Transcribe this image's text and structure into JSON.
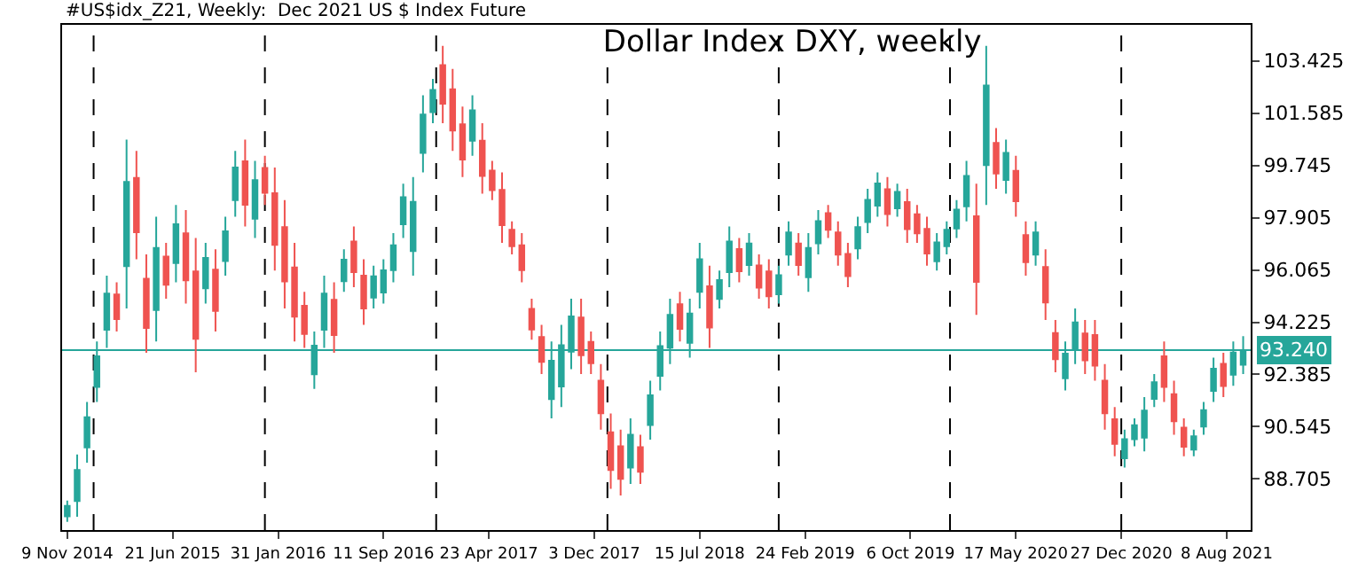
{
  "chart_data": {
    "type": "candlestick",
    "title": "Dollar Index DXY, weekly",
    "subtitle": "#US$idx_Z21, Weekly:  Dec 2021 US $ Index Future",
    "x": [
      "2014-11-09",
      "2014-11-30",
      "2014-12-21",
      "2015-01-11",
      "2015-02-01",
      "2015-02-22",
      "2015-03-15",
      "2015-04-05",
      "2015-04-26",
      "2015-05-17",
      "2015-06-07",
      "2015-06-28",
      "2015-07-19",
      "2015-08-09",
      "2015-08-30",
      "2015-09-20",
      "2015-10-11",
      "2015-11-01",
      "2015-11-22",
      "2015-12-13",
      "2016-01-03",
      "2016-01-24",
      "2016-02-14",
      "2016-03-06",
      "2016-03-27",
      "2016-04-17",
      "2016-05-08",
      "2016-05-29",
      "2016-06-19",
      "2016-07-10",
      "2016-07-31",
      "2016-08-21",
      "2016-09-11",
      "2016-10-02",
      "2016-10-23",
      "2016-11-13",
      "2016-12-04",
      "2016-12-25",
      "2017-01-15",
      "2017-02-05",
      "2017-02-26",
      "2017-03-19",
      "2017-04-09",
      "2017-04-30",
      "2017-05-21",
      "2017-06-11",
      "2017-07-02",
      "2017-07-23",
      "2017-08-13",
      "2017-09-03",
      "2017-09-24",
      "2017-10-15",
      "2017-11-05",
      "2017-11-26",
      "2017-12-17",
      "2018-01-07",
      "2018-01-28",
      "2018-02-18",
      "2018-03-11",
      "2018-04-01",
      "2018-04-22",
      "2018-05-13",
      "2018-06-03",
      "2018-06-24",
      "2018-07-15",
      "2018-08-05",
      "2018-08-26",
      "2018-09-16",
      "2018-10-07",
      "2018-10-28",
      "2018-11-18",
      "2018-12-09",
      "2018-12-30",
      "2019-01-20",
      "2019-02-10",
      "2019-03-03",
      "2019-03-24",
      "2019-04-14",
      "2019-05-05",
      "2019-05-26",
      "2019-06-16",
      "2019-07-07",
      "2019-07-28",
      "2019-08-18",
      "2019-09-08",
      "2019-09-29",
      "2019-10-20",
      "2019-11-10",
      "2019-12-01",
      "2019-12-22",
      "2020-01-12",
      "2020-02-02",
      "2020-02-23",
      "2020-03-15",
      "2020-04-05",
      "2020-04-26",
      "2020-05-17",
      "2020-06-07",
      "2020-06-28",
      "2020-07-19",
      "2020-08-09",
      "2020-08-30",
      "2020-09-20",
      "2020-10-11",
      "2020-11-01",
      "2020-11-22",
      "2020-12-13",
      "2021-01-03",
      "2021-01-24",
      "2021-02-14",
      "2021-03-07",
      "2021-03-28",
      "2021-04-18",
      "2021-05-09",
      "2021-05-30",
      "2021-06-20",
      "2021-07-11",
      "2021-08-01",
      "2021-08-22",
      "2021-09-12"
    ],
    "ohlc": [
      [
        87.39,
        87.95,
        87.2,
        87.76
      ],
      [
        87.93,
        89.57,
        87.38,
        89.02
      ],
      [
        89.82,
        91.42,
        89.28,
        90.88
      ],
      [
        91.95,
        93.55,
        91.42,
        93.02
      ],
      [
        93.96,
        95.86,
        93.32,
        95.23
      ],
      [
        95.2,
        95.63,
        93.9,
        94.33
      ],
      [
        96.2,
        100.65,
        94.71,
        99.16
      ],
      [
        99.3,
        100.25,
        96.44,
        97.39
      ],
      [
        95.75,
        96.61,
        93.15,
        94.02
      ],
      [
        94.65,
        97.94,
        93.55,
        96.84
      ],
      [
        96.53,
        97.02,
        95.05,
        95.54
      ],
      [
        96.31,
        98.35,
        95.63,
        97.67
      ],
      [
        97.35,
        98.17,
        94.88,
        95.7
      ],
      [
        96.01,
        97.19,
        92.46,
        93.64
      ],
      [
        95.42,
        97.02,
        94.88,
        96.49
      ],
      [
        96.07,
        96.79,
        93.9,
        94.62
      ],
      [
        96.38,
        97.94,
        95.86,
        97.42
      ],
      [
        98.52,
        100.25,
        97.94,
        99.67
      ],
      [
        99.89,
        100.65,
        97.59,
        98.36
      ],
      [
        97.87,
        99.9,
        97.19,
        99.22
      ],
      [
        99.65,
        100.08,
        98.35,
        98.78
      ],
      [
        98.76,
        99.67,
        96.04,
        96.95
      ],
      [
        97.57,
        98.52,
        94.71,
        95.66
      ],
      [
        96.15,
        97.02,
        93.55,
        94.42
      ],
      [
        94.8,
        95.29,
        93.32,
        93.81
      ],
      [
        92.39,
        93.9,
        91.88,
        93.4
      ],
      [
        93.96,
        95.86,
        93.32,
        95.23
      ],
      [
        95.01,
        95.63,
        93.15,
        93.77
      ],
      [
        95.67,
        96.79,
        95.29,
        96.42
      ],
      [
        97.06,
        97.59,
        95.46,
        95.99
      ],
      [
        95.86,
        96.44,
        94.13,
        94.71
      ],
      [
        95.09,
        96.21,
        94.71,
        95.84
      ],
      [
        95.27,
        96.44,
        94.88,
        96.05
      ],
      [
        96.06,
        97.36,
        95.63,
        96.93
      ],
      [
        97.67,
        99.1,
        97.19,
        98.62
      ],
      [
        96.73,
        99.33,
        95.86,
        98.46
      ],
      [
        100.18,
        102.21,
        99.5,
        101.53
      ],
      [
        101.62,
        102.79,
        101.23,
        102.4
      ],
      [
        103.27,
        103.95,
        101.23,
        101.91
      ],
      [
        102.42,
        103.14,
        100.25,
        100.97
      ],
      [
        101.19,
        101.81,
        99.33,
        99.95
      ],
      [
        100.61,
        102.21,
        100.08,
        101.68
      ],
      [
        100.61,
        101.23,
        98.75,
        99.37
      ],
      [
        99.56,
        99.9,
        98.52,
        98.87
      ],
      [
        98.88,
        99.5,
        97.02,
        97.64
      ],
      [
        97.48,
        97.77,
        96.61,
        96.9
      ],
      [
        96.93,
        97.36,
        95.63,
        96.06
      ],
      [
        94.69,
        95.05,
        93.61,
        93.97
      ],
      [
        93.7,
        94.13,
        92.4,
        92.83
      ],
      [
        91.52,
        93.55,
        90.84,
        92.87
      ],
      [
        91.96,
        94.13,
        91.24,
        93.41
      ],
      [
        93.19,
        95.05,
        92.57,
        94.43
      ],
      [
        94.39,
        95.05,
        92.4,
        93.06
      ],
      [
        93.53,
        93.9,
        92.4,
        92.78
      ],
      [
        92.17,
        92.75,
        90.44,
        91.02
      ],
      [
        90.35,
        91.01,
        88.36,
        89.02
      ],
      [
        89.86,
        90.44,
        88.13,
        88.71
      ],
      [
        89.11,
        90.84,
        88.53,
        90.26
      ],
      [
        89.83,
        90.26,
        88.53,
        88.96
      ],
      [
        90.61,
        92.17,
        90.09,
        91.65
      ],
      [
        92.34,
        93.9,
        91.82,
        93.38
      ],
      [
        93.33,
        95.05,
        92.75,
        94.48
      ],
      [
        94.86,
        95.29,
        93.55,
        93.99
      ],
      [
        93.5,
        95.05,
        92.98,
        94.53
      ],
      [
        95.29,
        97.02,
        94.71,
        96.44
      ],
      [
        95.49,
        96.21,
        93.32,
        94.04
      ],
      [
        95.04,
        96.04,
        94.71,
        95.71
      ],
      [
        95.99,
        97.59,
        95.46,
        97.06
      ],
      [
        96.8,
        97.19,
        95.63,
        96.02
      ],
      [
        96.24,
        97.36,
        95.86,
        96.99
      ],
      [
        96.22,
        96.61,
        95.05,
        95.44
      ],
      [
        96.01,
        96.44,
        94.71,
        95.14
      ],
      [
        95.21,
        96.21,
        94.88,
        95.88
      ],
      [
        96.6,
        97.77,
        96.21,
        97.38
      ],
      [
        96.99,
        97.36,
        95.86,
        96.24
      ],
      [
        95.81,
        97.36,
        95.29,
        96.84
      ],
      [
        97.0,
        98.17,
        96.61,
        97.78
      ],
      [
        98.06,
        98.35,
        97.19,
        97.48
      ],
      [
        97.38,
        97.77,
        96.21,
        96.6
      ],
      [
        96.63,
        97.02,
        95.46,
        95.85
      ],
      [
        96.82,
        97.94,
        96.44,
        97.57
      ],
      [
        97.75,
        98.92,
        97.36,
        98.53
      ],
      [
        98.33,
        99.5,
        97.94,
        99.11
      ],
      [
        98.9,
        99.33,
        97.59,
        98.03
      ],
      [
        98.23,
        99.1,
        97.94,
        98.81
      ],
      [
        98.45,
        98.92,
        97.02,
        97.5
      ],
      [
        98.02,
        98.35,
        97.02,
        97.35
      ],
      [
        97.51,
        97.94,
        96.21,
        96.64
      ],
      [
        96.37,
        97.36,
        96.04,
        97.03
      ],
      [
        96.9,
        97.77,
        96.61,
        97.48
      ],
      [
        97.52,
        98.52,
        97.19,
        98.19
      ],
      [
        98.3,
        99.9,
        97.77,
        99.37
      ],
      [
        97.95,
        99.1,
        94.48,
        95.64
      ],
      [
        99.75,
        103.95,
        98.35,
        102.55
      ],
      [
        100.53,
        101.06,
        98.92,
        99.46
      ],
      [
        99.23,
        100.65,
        98.75,
        100.18
      ],
      [
        99.55,
        100.08,
        97.94,
        98.48
      ],
      [
        97.29,
        97.77,
        95.86,
        96.34
      ],
      [
        96.6,
        97.77,
        96.21,
        97.38
      ],
      [
        96.17,
        96.79,
        94.3,
        94.92
      ],
      [
        93.84,
        94.3,
        92.46,
        92.92
      ],
      [
        92.25,
        93.55,
        91.82,
        93.12
      ],
      [
        93.24,
        94.71,
        92.75,
        94.22
      ],
      [
        93.83,
        94.3,
        92.4,
        92.88
      ],
      [
        93.77,
        94.3,
        92.17,
        92.7
      ],
      [
        92.17,
        92.75,
        90.44,
        91.02
      ],
      [
        90.81,
        91.24,
        89.51,
        89.94
      ],
      [
        89.44,
        90.44,
        89.11,
        90.11
      ],
      [
        90.11,
        90.84,
        89.86,
        90.6
      ],
      [
        90.16,
        91.59,
        89.68,
        91.11
      ],
      [
        91.53,
        92.4,
        91.24,
        92.11
      ],
      [
        93.02,
        93.55,
        91.42,
        91.95
      ],
      [
        91.69,
        92.17,
        90.26,
        90.74
      ],
      [
        90.51,
        90.84,
        89.51,
        89.84
      ],
      [
        89.74,
        90.44,
        89.51,
        90.21
      ],
      [
        90.55,
        91.42,
        90.26,
        91.13
      ],
      [
        91.81,
        92.98,
        91.42,
        92.59
      ],
      [
        92.76,
        93.15,
        91.59,
        91.98
      ],
      [
        92.38,
        93.55,
        91.99,
        93.16
      ],
      [
        92.73,
        93.73,
        92.4,
        93.24
      ]
    ],
    "colors": [
      "#26a69a",
      "#26a69a",
      "#26a69a",
      "#26a69a",
      "#26a69a",
      "#ef5350",
      "#26a69a",
      "#ef5350",
      "#ef5350",
      "#26a69a",
      "#ef5350",
      "#26a69a",
      "#ef5350",
      "#ef5350",
      "#26a69a",
      "#ef5350",
      "#26a69a",
      "#26a69a",
      "#ef5350",
      "#26a69a",
      "#ef5350",
      "#ef5350",
      "#ef5350",
      "#ef5350",
      "#ef5350",
      "#26a69a",
      "#26a69a",
      "#ef5350",
      "#26a69a",
      "#ef5350",
      "#ef5350",
      "#26a69a",
      "#26a69a",
      "#26a69a",
      "#26a69a",
      "#26a69a",
      "#26a69a",
      "#26a69a",
      "#ef5350",
      "#ef5350",
      "#ef5350",
      "#26a69a",
      "#ef5350",
      "#ef5350",
      "#ef5350",
      "#ef5350",
      "#ef5350",
      "#ef5350",
      "#ef5350",
      "#26a69a",
      "#26a69a",
      "#26a69a",
      "#ef5350",
      "#ef5350",
      "#ef5350",
      "#ef5350",
      "#ef5350",
      "#26a69a",
      "#ef5350",
      "#26a69a",
      "#26a69a",
      "#26a69a",
      "#ef5350",
      "#26a69a",
      "#26a69a",
      "#ef5350",
      "#26a69a",
      "#26a69a",
      "#ef5350",
      "#26a69a",
      "#ef5350",
      "#ef5350",
      "#26a69a",
      "#26a69a",
      "#ef5350",
      "#26a69a",
      "#26a69a",
      "#ef5350",
      "#ef5350",
      "#ef5350",
      "#26a69a",
      "#26a69a",
      "#26a69a",
      "#ef5350",
      "#26a69a",
      "#ef5350",
      "#ef5350",
      "#ef5350",
      "#26a69a",
      "#26a69a",
      "#26a69a",
      "#26a69a",
      "#ef5350",
      "#26a69a",
      "#ef5350",
      "#26a69a",
      "#ef5350",
      "#ef5350",
      "#26a69a",
      "#ef5350",
      "#ef5350",
      "#26a69a",
      "#26a69a",
      "#ef5350",
      "#ef5350",
      "#ef5350",
      "#ef5350",
      "#26a69a",
      "#26a69a",
      "#26a69a",
      "#26a69a",
      "#ef5350",
      "#ef5350",
      "#ef5350",
      "#26a69a",
      "#26a69a",
      "#26a69a",
      "#ef5350",
      "#26a69a",
      "#26a69a"
    ],
    "xlim": [
      "2014-10-29",
      "2021-09-28"
    ],
    "xticks": [
      {
        "value": "2014-11-09",
        "label": "9 Nov 2014"
      },
      {
        "value": "2015-06-21",
        "label": "21 Jun 2015"
      },
      {
        "value": "2016-01-31",
        "label": "31 Jan 2016"
      },
      {
        "value": "2016-09-11",
        "label": "11 Sep 2016"
      },
      {
        "value": "2017-04-23",
        "label": "23 Apr 2017"
      },
      {
        "value": "2017-12-03",
        "label": "3 Dec 2017"
      },
      {
        "value": "2018-07-15",
        "label": "15 Jul 2018"
      },
      {
        "value": "2019-02-24",
        "label": "24 Feb 2019"
      },
      {
        "value": "2019-10-06",
        "label": "6 Oct 2019"
      },
      {
        "value": "2020-05-17",
        "label": "17 May 2020"
      },
      {
        "value": "2020-12-27",
        "label": "27 Dec 2020"
      },
      {
        "value": "2021-08-08",
        "label": "8 Aug 2021"
      }
    ],
    "ylim": [
      86.91,
      104.69
    ],
    "yticks": [
      {
        "value": 88.705,
        "label": "88.705"
      },
      {
        "value": 90.545,
        "label": "90.545"
      },
      {
        "value": 92.385,
        "label": "92.385"
      },
      {
        "value": 94.225,
        "label": "94.225"
      },
      {
        "value": 96.065,
        "label": "96.065"
      },
      {
        "value": 97.905,
        "label": "97.905"
      },
      {
        "value": 99.745,
        "label": "99.745"
      },
      {
        "value": 101.585,
        "label": "101.585"
      },
      {
        "value": 103.425,
        "label": "103.425"
      }
    ],
    "ref_lines": [
      {
        "axis": "y",
        "value": 93.24,
        "label": "93.240",
        "color": "#26a69a",
        "line_style": "solid"
      },
      {
        "axis": "x",
        "value": "2015-01-04",
        "label": null,
        "color": "#000000",
        "line_style": "dashed"
      },
      {
        "axis": "x",
        "value": "2016-01-03",
        "label": null,
        "color": "#000000",
        "line_style": "dashed"
      },
      {
        "axis": "x",
        "value": "2017-01-01",
        "label": null,
        "color": "#000000",
        "line_style": "dashed"
      },
      {
        "axis": "x",
        "value": "2017-12-31",
        "label": null,
        "color": "#000000",
        "line_style": "dashed"
      },
      {
        "axis": "x",
        "value": "2018-12-30",
        "label": null,
        "color": "#000000",
        "line_style": "dashed"
      },
      {
        "axis": "x",
        "value": "2019-12-29",
        "label": null,
        "color": "#000000",
        "line_style": "dashed"
      },
      {
        "axis": "x",
        "value": "2020-12-27",
        "label": null,
        "color": "#000000",
        "line_style": "dashed"
      }
    ],
    "grid": false
  }
}
